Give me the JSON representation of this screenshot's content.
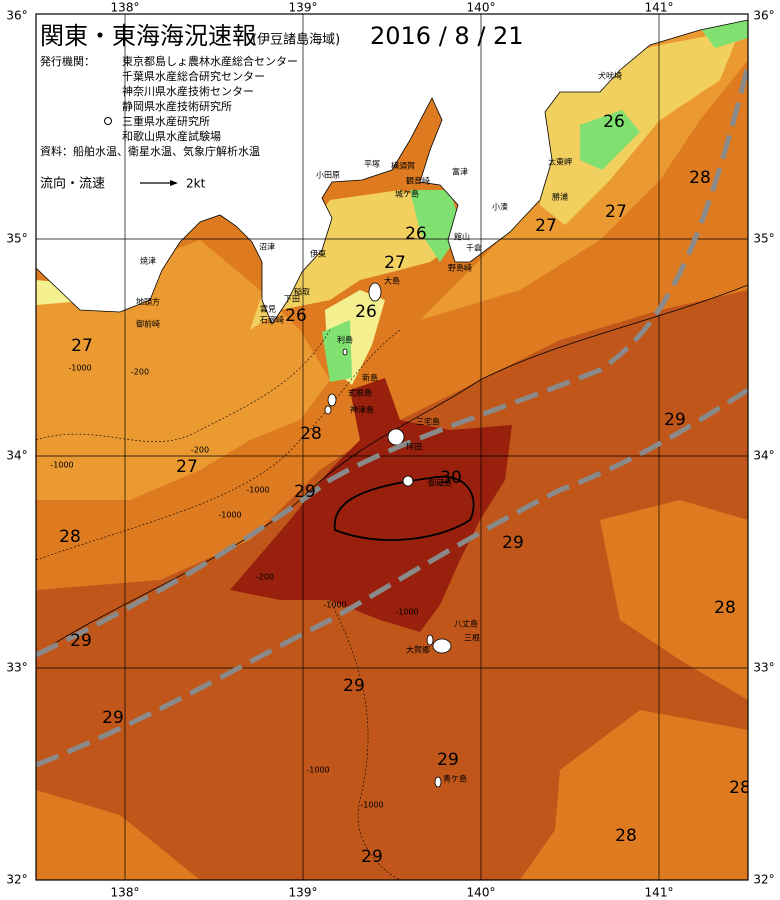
{
  "header": {
    "title": "関東・東海海況速報",
    "subtitle": "(伊豆諸島海域)",
    "date": "2016 / 8 / 21"
  },
  "publishers": {
    "label": "発行機関：",
    "names": [
      "東京都島しょ農林水産総合センター",
      "千葉県水産総合研究センター",
      "神奈川県水産技術センター",
      "静岡県水産技術研究所",
      "三重県水産研究所",
      "和歌山県水産試験場"
    ]
  },
  "source": "資料：船舶水温、衛星水温、気象庁解析水温",
  "legend": {
    "label": "流向・流速",
    "speed": "2kt"
  },
  "longitude_labels": [
    "138°",
    "139°",
    "140°",
    "141°"
  ],
  "latitude_labels": [
    "36°",
    "35°",
    "34°",
    "33°",
    "32°"
  ],
  "temperature_labels": [
    26,
    28,
    27,
    27,
    26,
    27,
    26,
    26,
    27,
    28,
    29,
    27,
    30,
    29,
    28,
    29,
    28,
    29,
    29,
    29,
    29,
    28,
    28,
    29
  ],
  "place_names": [
    "犬吠埼",
    "太東岬",
    "勝浦",
    "小湊",
    "富津",
    "平塚",
    "横須賀",
    "観音崎",
    "城ケ島",
    "小田原",
    "館山",
    "千倉",
    "野島崎",
    "沼津",
    "伊東",
    "焼津",
    "稲取",
    "大島",
    "下田",
    "雲見",
    "石廊崎",
    "利島",
    "地頭方",
    "御前崎",
    "新島",
    "式根島",
    "神津島",
    "三宅島",
    "坪田",
    "御蔵島",
    "八丈島",
    "三根",
    "大賀郷",
    "青ケ島"
  ],
  "depth_labels": [
    "-1000",
    "-200",
    "-1000",
    "-200",
    "-1000",
    "-1000",
    "-200",
    "-1000",
    "-1000",
    "-1000",
    "-1000"
  ]
}
